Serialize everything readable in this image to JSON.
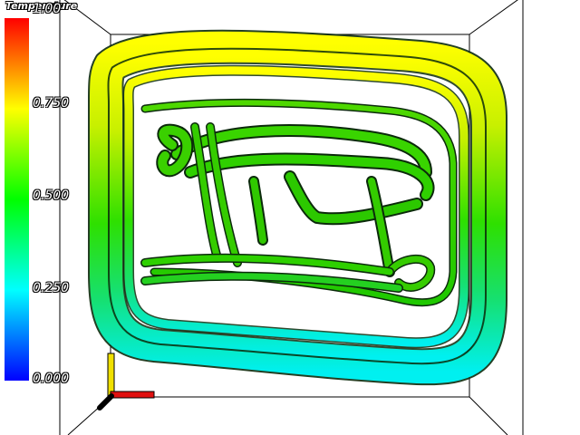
{
  "legend": {
    "title": "Temperature",
    "ticks": {
      "t100": "1.00",
      "t075": "0.750",
      "t050": "0.500",
      "t025": "0.250",
      "t000": "0.000"
    },
    "colormap": [
      "#0000ff",
      "#00ffff",
      "#00ff00",
      "#ffff00",
      "#ff0000"
    ]
  },
  "axes": {
    "x_color": "#ff0000",
    "y_color": "#ffff00",
    "z_color": "#000000"
  },
  "scene": {
    "background": "#ffffff",
    "outline_color": "#000000",
    "streamline_stroke": "#0b2a0b"
  }
}
